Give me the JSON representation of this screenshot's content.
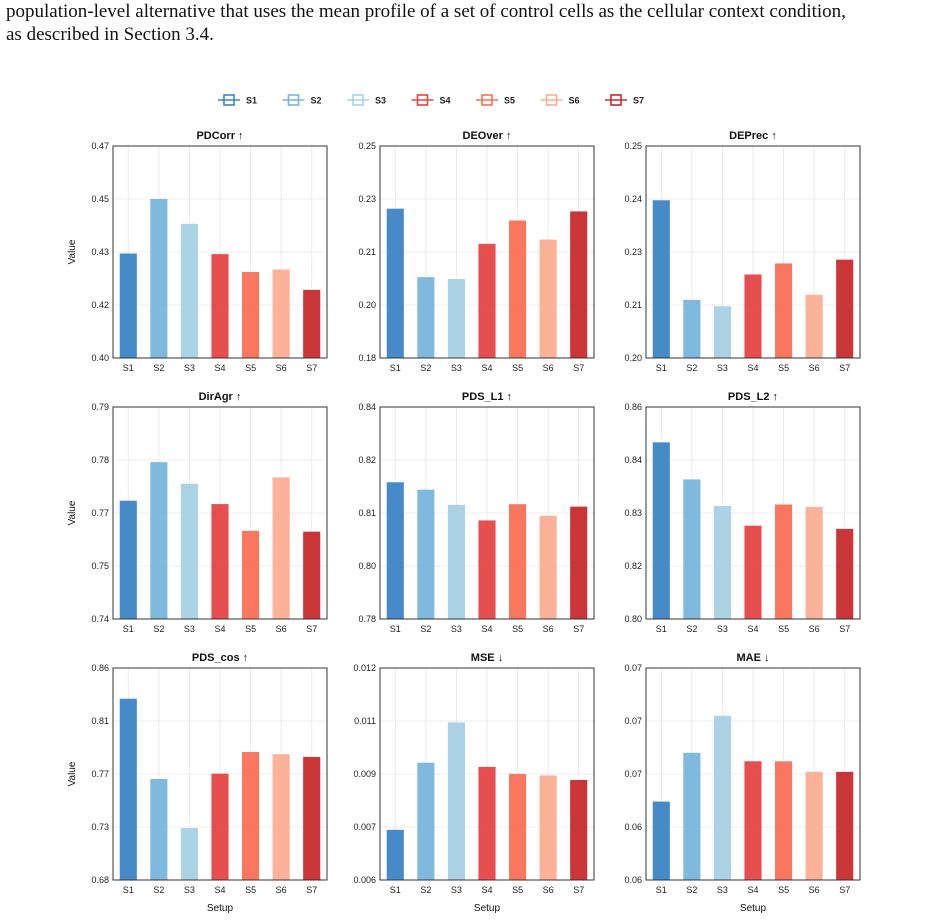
{
  "paragraph": {
    "line1": "population-level alternative that uses the mean profile of a set of control cells as the cellular context condition,",
    "line2": "as described in Section 3.4."
  },
  "figure": {
    "legend": [
      "S1",
      "S2",
      "S3",
      "S4",
      "S5",
      "S6",
      "S7"
    ],
    "colors": [
      "#3c85c4",
      "#78b5dc",
      "#a8d0e4",
      "#e54546",
      "#f97055",
      "#fcae93",
      "#c72b2d"
    ]
  },
  "chart_data": [
    {
      "type": "bar",
      "title": "PDCorr ↑",
      "categories": [
        "S1",
        "S2",
        "S3",
        "S4",
        "S5",
        "S6",
        "S7"
      ],
      "values": [
        0.4345,
        0.4525,
        0.4443,
        0.4343,
        0.4284,
        0.4292,
        0.4225
      ],
      "ylim": [
        0.4,
        0.47
      ],
      "yticks": [
        0.4,
        0.4175,
        0.435,
        0.4525,
        0.47
      ],
      "yticklabels": [
        "0.40",
        "0.42",
        "0.43",
        "0.45",
        "0.47"
      ],
      "ylabel": "Value",
      "xlabel": ""
    },
    {
      "type": "bar",
      "title": "DEOver ↑",
      "categories": [
        "S1",
        "S2",
        "S3",
        "S4",
        "S5",
        "S6",
        "S7"
      ],
      "values": [
        0.2293,
        0.2067,
        0.2061,
        0.2177,
        0.2254,
        0.2191,
        0.2284
      ],
      "ylim": [
        0.18,
        0.25
      ],
      "yticks": [
        0.18,
        0.1975,
        0.215,
        0.2325,
        0.25
      ],
      "yticklabels": [
        "0.18",
        "0.20",
        "0.21",
        "0.23",
        "0.25"
      ],
      "ylabel": "",
      "xlabel": ""
    },
    {
      "type": "bar",
      "title": "DEPrec ↑",
      "categories": [
        "S1",
        "S2",
        "S3",
        "S4",
        "S5",
        "S6",
        "S7"
      ],
      "values": [
        0.2372,
        0.2137,
        0.2122,
        0.2197,
        0.2223,
        0.2149,
        0.2232
      ],
      "ylim": [
        0.2,
        0.25
      ],
      "yticks": [
        0.2,
        0.2125,
        0.225,
        0.2375,
        0.25
      ],
      "yticklabels": [
        "0.20",
        "0.21",
        "0.23",
        "0.24",
        "0.25"
      ],
      "ylabel": "",
      "xlabel": ""
    },
    {
      "type": "bar",
      "title": "DirAgr ↑",
      "categories": [
        "S1",
        "S2",
        "S3",
        "S4",
        "S5",
        "S6",
        "S7"
      ],
      "values": [
        0.7679,
        0.777,
        0.7719,
        0.7671,
        0.7608,
        0.7734,
        0.7606
      ],
      "ylim": [
        0.74,
        0.79
      ],
      "yticks": [
        0.74,
        0.7525,
        0.765,
        0.7775,
        0.79
      ],
      "yticklabels": [
        "0.74",
        "0.75",
        "0.77",
        "0.78",
        "0.79"
      ],
      "ylabel": "Value",
      "xlabel": ""
    },
    {
      "type": "bar",
      "title": "PDS_L1 ↑",
      "categories": [
        "S1",
        "S2",
        "S3",
        "S4",
        "S5",
        "S6",
        "S7"
      ],
      "values": [
        0.8187,
        0.8166,
        0.8123,
        0.8079,
        0.8125,
        0.8092,
        0.8118
      ],
      "ylim": [
        0.78,
        0.84
      ],
      "yticks": [
        0.78,
        0.795,
        0.81,
        0.825,
        0.84
      ],
      "yticklabels": [
        "0.78",
        "0.80",
        "0.81",
        "0.82",
        "0.84"
      ],
      "ylabel": "",
      "xlabel": ""
    },
    {
      "type": "bar",
      "title": "PDS_L2 ↑",
      "categories": [
        "S1",
        "S2",
        "S3",
        "S4",
        "S5",
        "S6",
        "S7"
      ],
      "values": [
        0.85,
        0.8395,
        0.832,
        0.8264,
        0.8324,
        0.8317,
        0.8255
      ],
      "ylim": [
        0.8,
        0.86
      ],
      "yticks": [
        0.8,
        0.815,
        0.83,
        0.845,
        0.86
      ],
      "yticklabels": [
        "0.80",
        "0.82",
        "0.83",
        "0.84",
        "0.86"
      ],
      "ylabel": "",
      "xlabel": ""
    },
    {
      "type": "bar",
      "title": "PDS_cos ↑",
      "categories": [
        "S1",
        "S2",
        "S3",
        "S4",
        "S5",
        "S6",
        "S7"
      ],
      "values": [
        0.8339,
        0.7658,
        0.7241,
        0.7703,
        0.7887,
        0.7868,
        0.7845
      ],
      "ylim": [
        0.68,
        0.86
      ],
      "yticks": [
        0.68,
        0.725,
        0.77,
        0.815,
        0.86
      ],
      "yticklabels": [
        "0.68",
        "0.73",
        "0.77",
        "0.81",
        "0.86"
      ],
      "ylabel": "Value",
      "xlabel": "Setup"
    },
    {
      "type": "bar",
      "title": "MSE ↓",
      "categories": [
        "S1",
        "S2",
        "S3",
        "S4",
        "S5",
        "S6",
        "S7"
      ],
      "values": [
        0.00742,
        0.00932,
        0.01046,
        0.0092,
        0.009,
        0.00896,
        0.00883
      ],
      "ylim": [
        0.006,
        0.012
      ],
      "yticks": [
        0.006,
        0.0075,
        0.009,
        0.0105,
        0.012
      ],
      "yticklabels": [
        "0.006",
        "0.007",
        "0.009",
        "0.011",
        "0.012"
      ],
      "ylabel": "",
      "xlabel": "Setup"
    },
    {
      "type": "bar",
      "title": "MAE ↓",
      "categories": [
        "S1",
        "S2",
        "S3",
        "S4",
        "S5",
        "S6",
        "S7"
      ],
      "values": [
        0.0624,
        0.067,
        0.0705,
        0.0662,
        0.0662,
        0.0652,
        0.0652
      ],
      "ylim": [
        0.055,
        0.075
      ],
      "yticks": [
        0.055,
        0.06,
        0.065,
        0.07,
        0.075
      ],
      "yticklabels": [
        "0.06",
        "0.06",
        "0.07",
        "0.07",
        "0.07"
      ],
      "ylabel": "",
      "xlabel": "Setup"
    }
  ]
}
